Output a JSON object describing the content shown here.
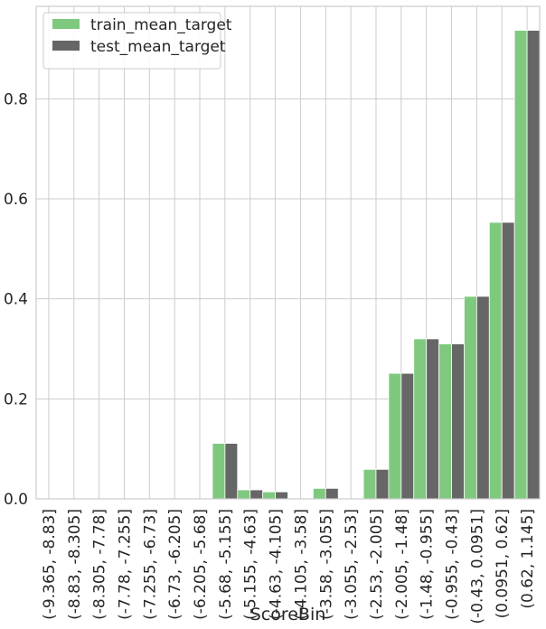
{
  "chart_data": {
    "type": "bar",
    "title": "",
    "xlabel": "ScoreBin",
    "ylabel": "",
    "ylim": [
      0,
      0.985
    ],
    "yticks": [
      0.0,
      0.2,
      0.4,
      0.6,
      0.8
    ],
    "ytick_labels": [
      "0.0",
      "0.2",
      "0.4",
      "0.6",
      "0.8"
    ],
    "grid": true,
    "legend_position": "top-left",
    "categories": [
      "(-9.365, -8.83]",
      "(-8.83, -8.305]",
      "(-8.305, -7.78]",
      "(-7.78, -7.255]",
      "(-7.255, -6.73]",
      "(-6.73, -6.205]",
      "(-6.205, -5.68]",
      "(-5.68, -5.155]",
      "(-5.155, -4.63]",
      "(-4.63, -4.105]",
      "(-4.105, -3.58]",
      "(-3.58, -3.055]",
      "(-3.055, -2.53]",
      "(-2.53, -2.005]",
      "(-2.005, -1.48]",
      "(-1.48, -0.955]",
      "(-0.955, -0.43]",
      "(-0.43, 0.0951]",
      "(0.0951, 0.62]",
      "(0.62, 1.145]"
    ],
    "series": [
      {
        "name": "train_mean_target",
        "color": "#7fc97f",
        "values": [
          0,
          0,
          0,
          0,
          0,
          0,
          0,
          0.111,
          0.018,
          0.014,
          0,
          0.021,
          0,
          0.059,
          0.251,
          0.32,
          0.31,
          0.405,
          0.553,
          0.937
        ]
      },
      {
        "name": "test_mean_target",
        "color": "#666666",
        "values": [
          0,
          0,
          0,
          0,
          0,
          0,
          0,
          0.111,
          0.018,
          0.014,
          0,
          0.021,
          0,
          0.059,
          0.251,
          0.32,
          0.31,
          0.405,
          0.553,
          0.937
        ]
      }
    ]
  }
}
